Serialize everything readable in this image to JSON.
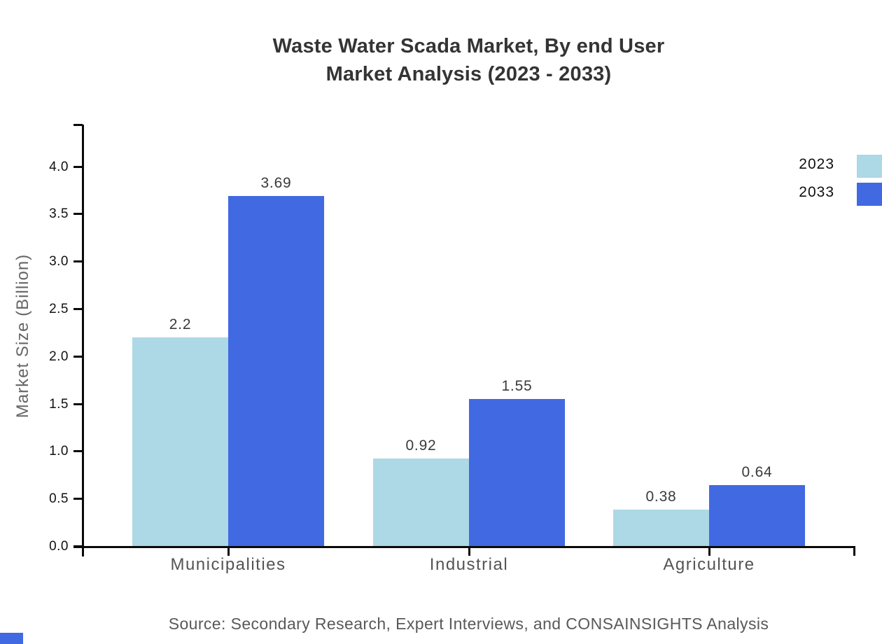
{
  "title": {
    "line1": "Waste Water Scada Market, By end User",
    "line2": "Market Analysis (2023 - 2033)"
  },
  "source": "Source: Secondary Research, Expert Interviews, and CONSAINSIGHTS Analysis",
  "legend": {
    "position": "top-right",
    "items": [
      {
        "label": "2023",
        "color": "#ADD8E6"
      },
      {
        "label": "2033",
        "color": "#4169E1"
      }
    ]
  },
  "chart_data": {
    "type": "bar",
    "title": "Waste Water Scada Market, By end User Market Analysis (2023 - 2033)",
    "categories": [
      "Municipalities",
      "Industrial",
      "Agriculture"
    ],
    "series": [
      {
        "name": "2023",
        "color": "#ADD8E6",
        "values": [
          2.2,
          0.92,
          0.38
        ]
      },
      {
        "name": "2033",
        "color": "#4169E1",
        "values": [
          3.69,
          1.55,
          0.64
        ]
      }
    ],
    "xlabel": "",
    "ylabel": "Market Size (Billion)",
    "ylim": [
      0.0,
      4.45
    ],
    "yticks": [
      "0.0",
      "0.5",
      "1.0",
      "1.5",
      "2.0",
      "2.5",
      "3.0",
      "3.5",
      "4.0"
    ],
    "grid": false,
    "legend_position": "top-right",
    "bar_value_labels": [
      "2.2",
      "3.69",
      "0.92",
      "1.55",
      "0.38",
      "0.64"
    ]
  },
  "colors": {
    "background": "#ffffff",
    "series_2023": "#ADD8E6",
    "series_2033": "#4169E1",
    "axis": "#0a0a0a",
    "title_text": "#343434",
    "value_label_text": "#3a3a3a",
    "category_text": "#545454",
    "tick_text": "#111111",
    "ylabel_text": "#666666",
    "source_text": "#595959",
    "corner_accent": "#4169E1"
  }
}
